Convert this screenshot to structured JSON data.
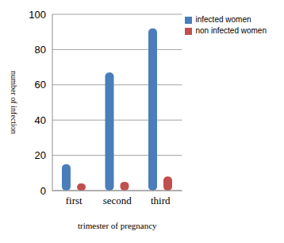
{
  "chart_data": {
    "type": "bar",
    "categories": [
      "first",
      "second",
      "third"
    ],
    "series": [
      {
        "name": "infected women",
        "color": "#4a7ebb",
        "values": [
          15,
          67,
          92
        ]
      },
      {
        "name": "non infected women",
        "color": "#c0504d",
        "values": [
          4,
          5,
          8
        ]
      }
    ],
    "x_label": "trimester of pregnancy",
    "y_label": "number of infection",
    "ylim": [
      0,
      100
    ],
    "yticks": [
      0,
      20,
      40,
      60,
      80,
      100
    ],
    "grid": true,
    "legend": "upper right"
  }
}
